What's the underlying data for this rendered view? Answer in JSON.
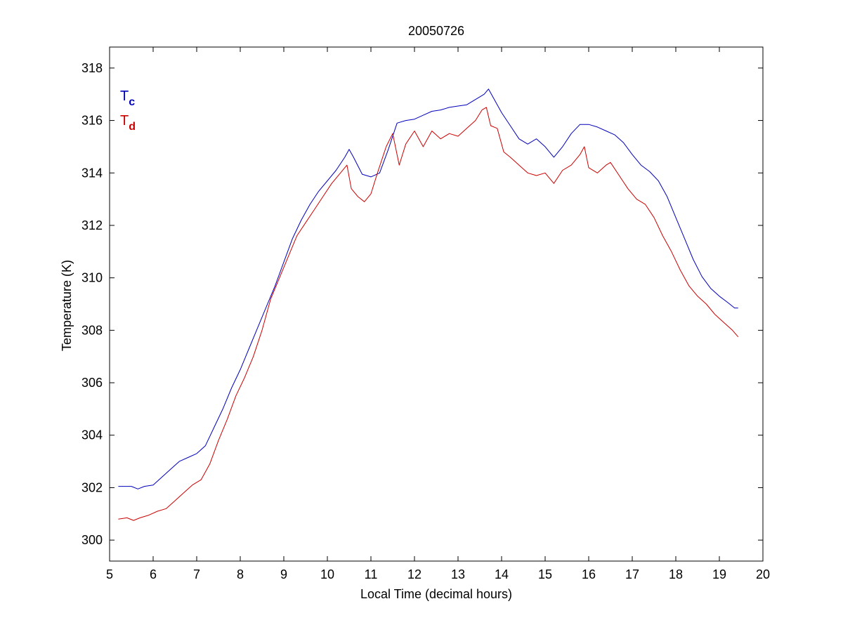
{
  "chart_data": {
    "type": "line",
    "title": "20050726",
    "xlabel": "Local Time (decimal hours)",
    "ylabel": "Temperature (K)",
    "xlim": [
      5,
      20
    ],
    "ylim": [
      299.2,
      318.8
    ],
    "xticks": [
      5,
      6,
      7,
      8,
      9,
      10,
      11,
      12,
      13,
      14,
      15,
      16,
      17,
      18,
      19,
      20
    ],
    "yticks": [
      300,
      302,
      304,
      306,
      308,
      310,
      312,
      314,
      316,
      318
    ],
    "grid": false,
    "legend_position": "top-left",
    "series": [
      {
        "name": "Tc",
        "label_main": "T",
        "label_sub": "c",
        "color": "#0000bb",
        "x": [
          5.2,
          5.5,
          5.65,
          5.8,
          6.0,
          6.2,
          6.4,
          6.6,
          6.8,
          7.0,
          7.2,
          7.4,
          7.6,
          7.8,
          8.0,
          8.2,
          8.4,
          8.6,
          8.8,
          9.0,
          9.2,
          9.4,
          9.6,
          9.8,
          10.0,
          10.2,
          10.4,
          10.5,
          10.6,
          10.8,
          10.9,
          11.0,
          11.2,
          11.4,
          11.6,
          11.8,
          12.0,
          12.2,
          12.4,
          12.6,
          12.8,
          13.0,
          13.2,
          13.4,
          13.6,
          13.7,
          13.8,
          14.0,
          14.2,
          14.4,
          14.6,
          14.8,
          15.0,
          15.2,
          15.4,
          15.6,
          15.8,
          16.0,
          16.2,
          16.4,
          16.6,
          16.8,
          17.0,
          17.2,
          17.4,
          17.6,
          17.8,
          18.0,
          18.2,
          18.4,
          18.6,
          18.8,
          19.0,
          19.2,
          19.35,
          19.43
        ],
        "values": [
          302.05,
          302.05,
          301.95,
          302.05,
          302.1,
          302.4,
          302.7,
          303.0,
          303.15,
          303.3,
          303.6,
          304.3,
          305.0,
          305.8,
          306.5,
          307.3,
          308.1,
          308.9,
          309.7,
          310.6,
          311.5,
          312.2,
          312.8,
          313.3,
          313.7,
          314.1,
          314.6,
          314.9,
          314.6,
          313.95,
          313.9,
          313.85,
          314.0,
          314.9,
          315.9,
          316.0,
          316.05,
          316.2,
          316.35,
          316.4,
          316.5,
          316.55,
          316.6,
          316.8,
          317.0,
          317.2,
          316.9,
          316.3,
          315.8,
          315.3,
          315.1,
          315.3,
          315.0,
          314.6,
          315.0,
          315.5,
          315.85,
          315.85,
          315.75,
          315.6,
          315.45,
          315.15,
          314.7,
          314.3,
          314.05,
          313.7,
          313.1,
          312.3,
          311.5,
          310.7,
          310.05,
          309.6,
          309.3,
          309.05,
          308.85,
          308.85
        ]
      },
      {
        "name": "Td",
        "label_main": "T",
        "label_sub": "d",
        "color": "#cc0000",
        "x": [
          5.2,
          5.4,
          5.55,
          5.7,
          5.9,
          6.1,
          6.3,
          6.5,
          6.7,
          6.9,
          7.1,
          7.3,
          7.5,
          7.7,
          7.9,
          8.1,
          8.3,
          8.5,
          8.7,
          8.9,
          9.1,
          9.3,
          9.5,
          9.7,
          9.9,
          10.1,
          10.3,
          10.45,
          10.55,
          10.7,
          10.85,
          11.0,
          11.15,
          11.35,
          11.5,
          11.65,
          11.8,
          12.0,
          12.2,
          12.4,
          12.6,
          12.8,
          13.0,
          13.2,
          13.4,
          13.55,
          13.65,
          13.75,
          13.9,
          14.05,
          14.2,
          14.4,
          14.6,
          14.8,
          15.0,
          15.2,
          15.4,
          15.6,
          15.8,
          15.9,
          16.0,
          16.2,
          16.4,
          16.5,
          16.7,
          16.9,
          17.1,
          17.3,
          17.5,
          17.7,
          17.9,
          18.1,
          18.3,
          18.5,
          18.7,
          18.9,
          19.1,
          19.3,
          19.43
        ],
        "values": [
          300.8,
          300.85,
          300.75,
          300.85,
          300.95,
          301.1,
          301.2,
          301.5,
          301.8,
          302.1,
          302.3,
          302.9,
          303.8,
          304.6,
          305.5,
          306.2,
          307.0,
          308.0,
          309.2,
          310.0,
          310.8,
          311.6,
          312.1,
          312.6,
          313.1,
          313.6,
          314.0,
          314.3,
          313.4,
          313.1,
          312.9,
          313.2,
          314.0,
          315.0,
          315.5,
          314.3,
          315.1,
          315.6,
          315.0,
          315.6,
          315.3,
          315.5,
          315.4,
          315.7,
          316.0,
          316.4,
          316.5,
          315.8,
          315.7,
          314.8,
          314.6,
          314.3,
          314.0,
          313.9,
          314.0,
          313.6,
          314.1,
          314.3,
          314.7,
          315.0,
          314.2,
          314.0,
          314.3,
          314.4,
          313.9,
          313.4,
          313.0,
          312.8,
          312.3,
          311.6,
          311.0,
          310.3,
          309.7,
          309.3,
          309.0,
          308.6,
          308.3,
          308.0,
          307.75
        ]
      }
    ]
  }
}
